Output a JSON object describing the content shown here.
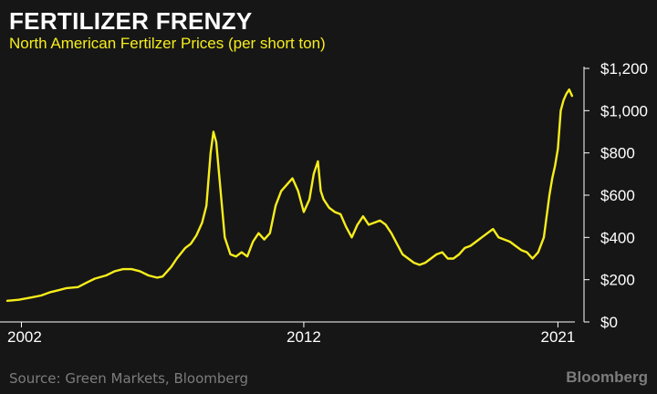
{
  "header": {
    "title": "FERTILIZER FRENZY",
    "subtitle": "North American Fertilzer Prices (per short ton)"
  },
  "footer": {
    "source": "Source: Green Markets, Bloomberg",
    "brand": "Bloomberg"
  },
  "colors": {
    "background": "#161616",
    "line": "#f6ed1c",
    "text": "#ffffff",
    "muted": "#7c7c7c"
  },
  "chart_data": {
    "type": "line",
    "title": "FERTILIZER FRENZY",
    "subtitle": "North American Fertilzer Prices (per short ton)",
    "xlabel": "",
    "ylabel": "",
    "xlim": [
      2001.5,
      2021.6
    ],
    "ylim": [
      0,
      1200
    ],
    "y_axis_side": "right",
    "grid": false,
    "x_ticks": [
      2002,
      2012,
      2021
    ],
    "x_tick_labels": [
      "2002",
      "2012",
      "2021"
    ],
    "y_ticks": [
      0,
      200,
      400,
      600,
      800,
      1000,
      1200
    ],
    "y_tick_labels": [
      "$0",
      "$200",
      "$400",
      "$600",
      "$800",
      "$1,000",
      "$1,200"
    ],
    "series": [
      {
        "color": "#f6ed1c",
        "x": [
          2001.5,
          2001.9,
          2002.3,
          2002.7,
          2003.0,
          2003.3,
          2003.6,
          2004.0,
          2004.3,
          2004.6,
          2005.0,
          2005.3,
          2005.6,
          2005.9,
          2006.2,
          2006.5,
          2006.8,
          2007.0,
          2007.3,
          2007.5,
          2007.8,
          2008.0,
          2008.2,
          2008.4,
          2008.55,
          2008.7,
          2008.8,
          2008.9,
          2009.0,
          2009.2,
          2009.4,
          2009.6,
          2009.8,
          2010.0,
          2010.2,
          2010.4,
          2010.6,
          2010.8,
          2011.0,
          2011.2,
          2011.4,
          2011.6,
          2011.8,
          2012.0,
          2012.2,
          2012.35,
          2012.5,
          2012.6,
          2012.7,
          2012.9,
          2013.1,
          2013.3,
          2013.5,
          2013.7,
          2013.9,
          2014.1,
          2014.3,
          2014.5,
          2014.7,
          2014.9,
          2015.1,
          2015.3,
          2015.5,
          2015.7,
          2015.9,
          2016.1,
          2016.3,
          2016.5,
          2016.7,
          2016.9,
          2017.1,
          2017.3,
          2017.5,
          2017.7,
          2017.9,
          2018.1,
          2018.3,
          2018.5,
          2018.7,
          2018.9,
          2019.1,
          2019.3,
          2019.5,
          2019.7,
          2019.9,
          2020.1,
          2020.3,
          2020.5,
          2020.7,
          2020.8,
          2020.9,
          2021.0,
          2021.1,
          2021.2,
          2021.3,
          2021.4,
          2021.5
        ],
        "y": [
          100,
          105,
          115,
          125,
          140,
          150,
          160,
          165,
          185,
          205,
          220,
          240,
          250,
          250,
          240,
          220,
          210,
          215,
          260,
          300,
          350,
          370,
          410,
          470,
          550,
          800,
          900,
          850,
          700,
          400,
          320,
          310,
          330,
          310,
          380,
          420,
          390,
          420,
          550,
          620,
          650,
          680,
          620,
          520,
          580,
          700,
          760,
          620,
          580,
          540,
          520,
          510,
          450,
          400,
          460,
          500,
          460,
          470,
          480,
          460,
          420,
          370,
          320,
          300,
          280,
          270,
          280,
          300,
          320,
          330,
          300,
          300,
          320,
          350,
          360,
          380,
          400,
          420,
          440,
          400,
          390,
          380,
          360,
          340,
          330,
          300,
          330,
          400,
          600,
          680,
          740,
          820,
          1000,
          1050,
          1080,
          1100,
          1070
        ]
      }
    ]
  }
}
